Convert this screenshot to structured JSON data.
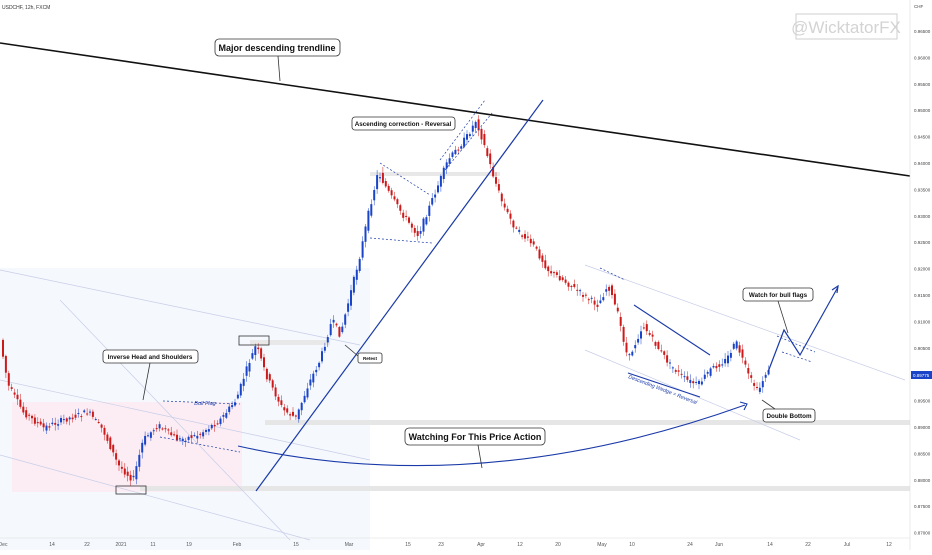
{
  "header": {
    "symbol": "USDCHF, 12h, FXCM",
    "currency": "CHF"
  },
  "watermark": "@WicktatorFX",
  "price_tag": "0.89775",
  "chart_data": {
    "type": "candlestick",
    "symbol": "USDCHF",
    "timeframe": "12h",
    "source": "FXCM",
    "ylim": [
      0.869,
      0.968
    ],
    "y_ticks": [
      "0.96500",
      "0.96000",
      "0.95500",
      "0.95000",
      "0.94500",
      "0.94000",
      "0.93500",
      "0.93000",
      "0.92500",
      "0.92000",
      "0.91500",
      "0.91000",
      "0.90500",
      "0.90000",
      "0.89500",
      "0.89000",
      "0.88500",
      "0.88000",
      "0.87500",
      "0.87000"
    ],
    "x_ticks": [
      "Dec",
      "14",
      "22",
      "2021",
      "11",
      "19",
      "Feb",
      "15",
      "Mar",
      "15",
      "23",
      "Apr",
      "12",
      "20",
      "May",
      "10",
      "24",
      "Jun",
      "14",
      "22",
      "Jul",
      "12"
    ],
    "current_price": 0.89775,
    "annotations": [
      "Major descending trendline",
      "Ascending correction - Reversal",
      "Inverse Head and Shoulders",
      "Bull Flag",
      "Retest",
      "Watching For This Price Action",
      "Descending Wedge = Reversal",
      "Watch for bull flags",
      "Double Bottom"
    ],
    "colors": {
      "up": "#1a44c8",
      "down": "#cc1a1a",
      "trend": "#111111",
      "line": "#1a3aa8"
    }
  }
}
